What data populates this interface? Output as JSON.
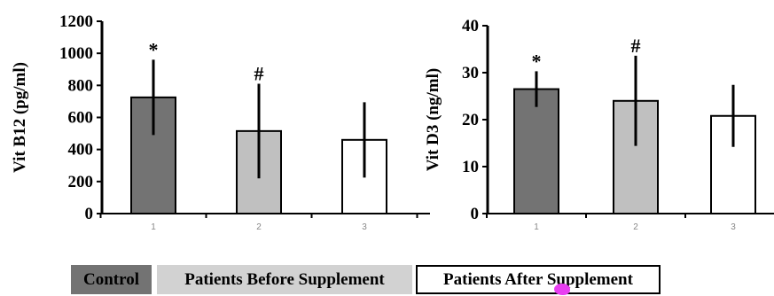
{
  "colors": {
    "control": "#737373",
    "before": "#c0c0c0",
    "after": "#ffffff",
    "axis": "#000000",
    "blob": "#e83ef0"
  },
  "legend": [
    {
      "label": "Control",
      "color": "#737373"
    },
    {
      "label": "Patients Before Supplement",
      "color": "#d2d2d2"
    },
    {
      "label": "Patients After Supplement",
      "color": "#ffffff"
    }
  ],
  "chart_data": [
    {
      "type": "bar",
      "ylabel": "Vit B12 (pg/ml)",
      "ylim": [
        0,
        1200
      ],
      "yticks": [
        "0",
        "200",
        "400",
        "600",
        "800",
        "1000",
        "1200"
      ],
      "categories": [
        "1",
        "2",
        "3"
      ],
      "values": [
        725,
        515,
        460
      ],
      "error": [
        235,
        295,
        235
      ],
      "annotations": [
        "*",
        "#",
        ""
      ],
      "grid": false
    },
    {
      "type": "bar",
      "ylabel": "Vit D3 (ng/ml)",
      "ylim": [
        0,
        40
      ],
      "yticks": [
        "0",
        "10",
        "20",
        "30",
        "40"
      ],
      "categories": [
        "1",
        "2",
        "3"
      ],
      "values": [
        26.5,
        24,
        20.8
      ],
      "error": [
        3.8,
        9.6,
        6.6
      ],
      "annotations": [
        "*",
        "#",
        ""
      ],
      "grid": false
    }
  ]
}
